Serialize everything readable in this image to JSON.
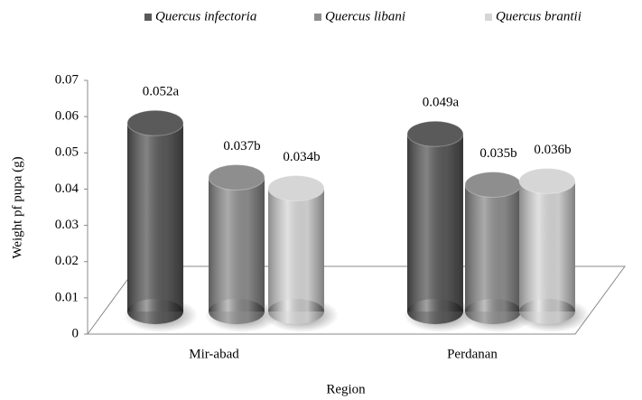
{
  "chart_data": {
    "type": "cylinder-bar",
    "xlabel": "Region",
    "ylabel": "Weight pf pupa (g)",
    "categories": [
      "Mir-abad",
      "Perdanan"
    ],
    "series": [
      {
        "name": "Quercus infectoria",
        "color": "#5a5a5a",
        "values": [
          0.052,
          0.049
        ],
        "value_labels": [
          "0.052a",
          "0.049a"
        ]
      },
      {
        "name": "Quercus libani",
        "color": "#8e8e8e",
        "values": [
          0.037,
          0.035
        ],
        "value_labels": [
          "0.037b",
          "0.035b"
        ]
      },
      {
        "name": "Quercus brantii",
        "color": "#d6d6d6",
        "values": [
          0.034,
          0.036
        ],
        "value_labels": [
          "0.034b",
          "0.036b"
        ]
      }
    ],
    "ylim": [
      0,
      0.07
    ],
    "yticks": [
      0,
      0.01,
      0.02,
      0.03,
      0.04,
      0.05,
      0.06,
      0.07
    ],
    "legend": "top"
  }
}
